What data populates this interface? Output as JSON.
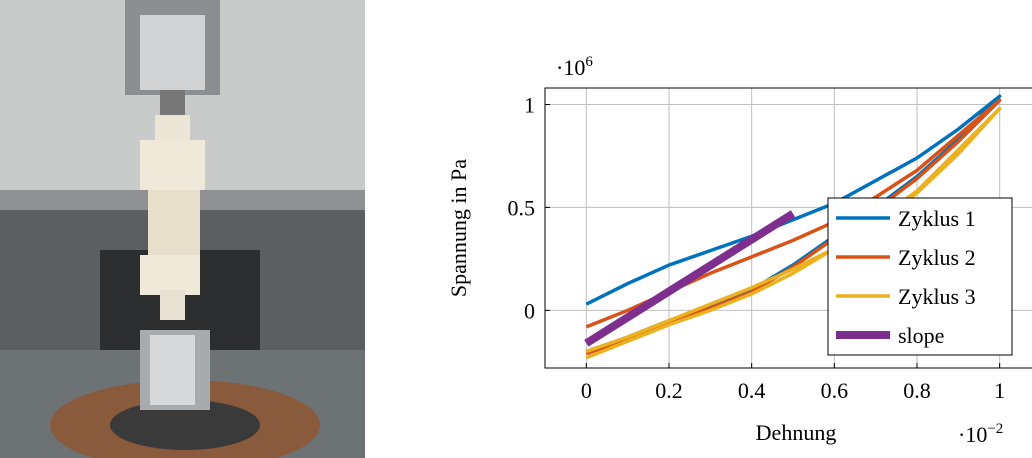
{
  "chart_data": {
    "type": "line",
    "xlabel": "Dehnung",
    "ylabel": "Spannung in Pa",
    "x_multiplier": {
      "base": "·10",
      "exponent": "−2"
    },
    "y_multiplier": {
      "base": "·10",
      "exponent": "6"
    },
    "xlim": [
      -0.1,
      1.1
    ],
    "ylim": [
      -0.28,
      1.08
    ],
    "xticks": [
      0,
      0.2,
      0.4,
      0.6,
      0.8,
      1
    ],
    "yticks": [
      0,
      0.5,
      1
    ],
    "grid": true,
    "legend": "lower right",
    "series": [
      {
        "name": "Zyklus 1",
        "color": "#0072bd",
        "x": [
          0,
          0.1,
          0.2,
          0.3,
          0.4,
          0.5,
          0.6,
          0.7,
          0.8,
          0.9,
          1,
          0.9,
          0.8,
          0.7,
          0.6,
          0.5,
          0.4,
          0.3,
          0.2,
          0.1,
          0
        ],
        "values": [
          -0.2,
          -0.13,
          -0.05,
          0.02,
          0.1,
          0.22,
          0.36,
          0.5,
          0.65,
          0.83,
          1.04,
          0.88,
          0.74,
          0.63,
          0.52,
          0.44,
          0.36,
          0.29,
          0.22,
          0.13,
          0.03
        ]
      },
      {
        "name": "Zyklus 2",
        "color": "#d95319",
        "x": [
          0,
          0.1,
          0.2,
          0.3,
          0.4,
          0.5,
          0.6,
          0.7,
          0.8,
          0.9,
          1,
          0.9,
          0.8,
          0.7,
          0.6,
          0.5,
          0.4,
          0.3,
          0.2,
          0.1,
          0
        ],
        "values": [
          -0.21,
          -0.14,
          -0.06,
          0.01,
          0.09,
          0.21,
          0.35,
          0.49,
          0.64,
          0.82,
          1.02,
          0.85,
          0.68,
          0.55,
          0.43,
          0.34,
          0.26,
          0.18,
          0.09,
          0.0,
          -0.08
        ]
      },
      {
        "name": "Zyklus 3",
        "color": "#edb120",
        "x": [
          0,
          0.1,
          0.2,
          0.3,
          0.4,
          0.5,
          0.6,
          0.7,
          0.8,
          0.9,
          1,
          0.9,
          0.8,
          0.7,
          0.6,
          0.5,
          0.4,
          0.3,
          0.2,
          0.1,
          0
        ],
        "values": [
          -0.23,
          -0.15,
          -0.07,
          0.0,
          0.08,
          0.18,
          0.3,
          0.43,
          0.57,
          0.76,
          0.98,
          0.78,
          0.58,
          0.43,
          0.3,
          0.2,
          0.11,
          0.03,
          -0.05,
          -0.13,
          -0.2
        ]
      },
      {
        "name": "slope",
        "color": "#7e2f8e",
        "x": [
          0,
          0.5
        ],
        "values": [
          -0.16,
          0.47
        ]
      }
    ]
  }
}
